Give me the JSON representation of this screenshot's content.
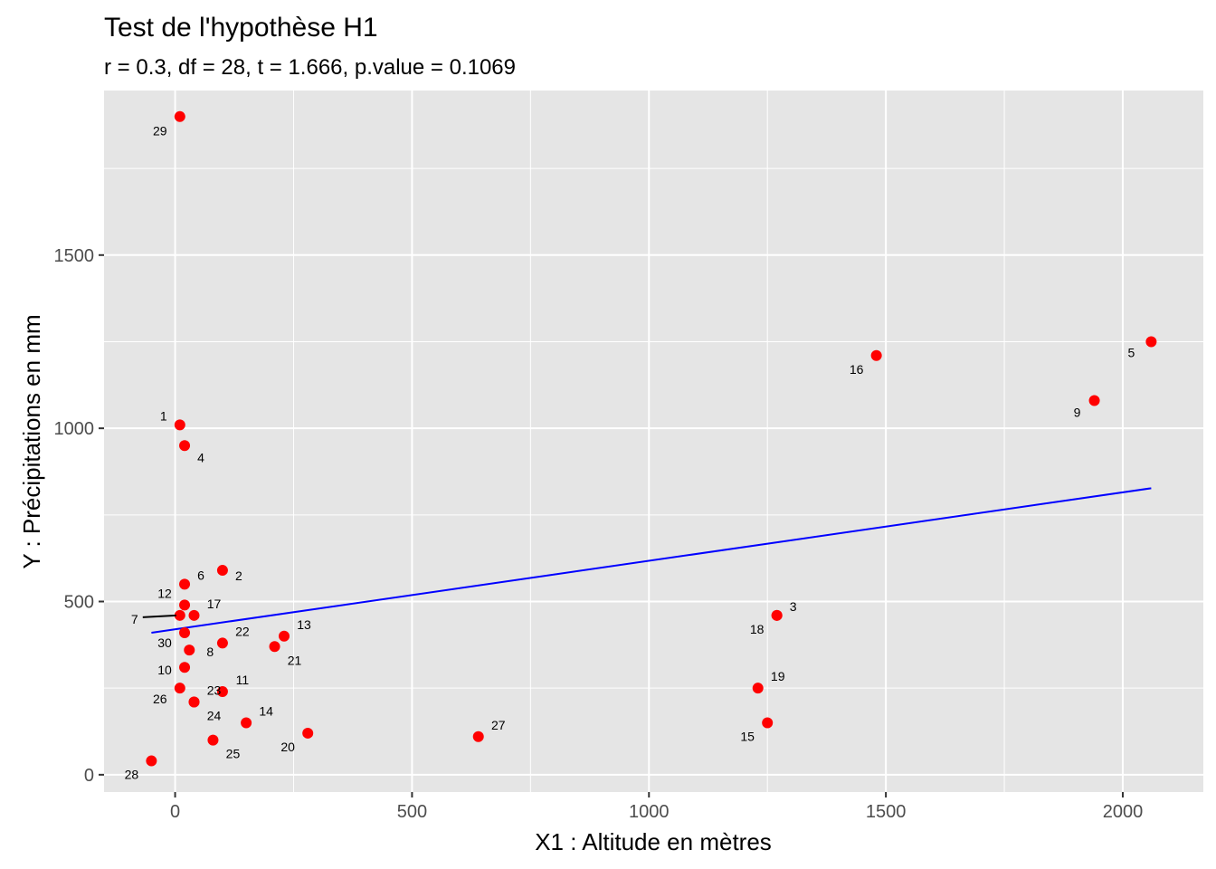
{
  "chart_data": {
    "type": "scatter",
    "title": "Test de l'hypothèse H1",
    "subtitle": "r = 0.3, df = 28, t = 1.666, p.value = 0.1069",
    "xlabel": "X1 : Altitude en mètres",
    "ylabel": "Y : Précipitations en mm",
    "xlim": [
      -150,
      2170
    ],
    "ylim": [
      -50,
      1975
    ],
    "x_ticks": [
      0,
      500,
      1000,
      1500,
      2000
    ],
    "x_tick_labels": [
      "0",
      "500",
      "1000",
      "1500",
      "2000"
    ],
    "y_ticks": [
      0,
      500,
      1000,
      1500
    ],
    "y_tick_labels": [
      "0",
      "500",
      "1000",
      "1500"
    ],
    "grid": true,
    "point_color": "#FF0000",
    "line_color": "#0000FF",
    "panel_bg": "#E5E5E5",
    "grid_color": "#FFFFFF",
    "trend_line": {
      "x": [
        -50,
        2060
      ],
      "y": [
        410,
        827
      ]
    },
    "points": [
      {
        "label": "1",
        "x": 10,
        "y": 1010
      },
      {
        "label": "2",
        "x": 100,
        "y": 590
      },
      {
        "label": "3",
        "x": 1270,
        "y": 460
      },
      {
        "label": "4",
        "x": 20,
        "y": 950
      },
      {
        "label": "5",
        "x": 2060,
        "y": 1250
      },
      {
        "label": "6",
        "x": 20,
        "y": 550
      },
      {
        "label": "7",
        "x": 10,
        "y": 460
      },
      {
        "label": "8",
        "x": 30,
        "y": 360
      },
      {
        "label": "9",
        "x": 1940,
        "y": 1080
      },
      {
        "label": "10",
        "x": 20,
        "y": 310
      },
      {
        "label": "11",
        "x": 100,
        "y": 240
      },
      {
        "label": "12",
        "x": 20,
        "y": 490
      },
      {
        "label": "13",
        "x": 230,
        "y": 400
      },
      {
        "label": "14",
        "x": 150,
        "y": 150
      },
      {
        "label": "15",
        "x": 1250,
        "y": 150
      },
      {
        "label": "16",
        "x": 1480,
        "y": 1210
      },
      {
        "label": "17",
        "x": 40,
        "y": 460
      },
      {
        "label": "18",
        "x": 1270,
        "y": 460
      },
      {
        "label": "19",
        "x": 1230,
        "y": 250
      },
      {
        "label": "20",
        "x": 280,
        "y": 120
      },
      {
        "label": "21",
        "x": 210,
        "y": 370
      },
      {
        "label": "22",
        "x": 100,
        "y": 380
      },
      {
        "label": "23",
        "x": 40,
        "y": 210
      },
      {
        "label": "24",
        "x": 40,
        "y": 210
      },
      {
        "label": "25",
        "x": 80,
        "y": 100
      },
      {
        "label": "26",
        "x": 10,
        "y": 250
      },
      {
        "label": "27",
        "x": 640,
        "y": 110
      },
      {
        "label": "28",
        "x": -50,
        "y": 40
      },
      {
        "label": "29",
        "x": 10,
        "y": 1900
      },
      {
        "label": "30",
        "x": 20,
        "y": 410
      }
    ]
  }
}
